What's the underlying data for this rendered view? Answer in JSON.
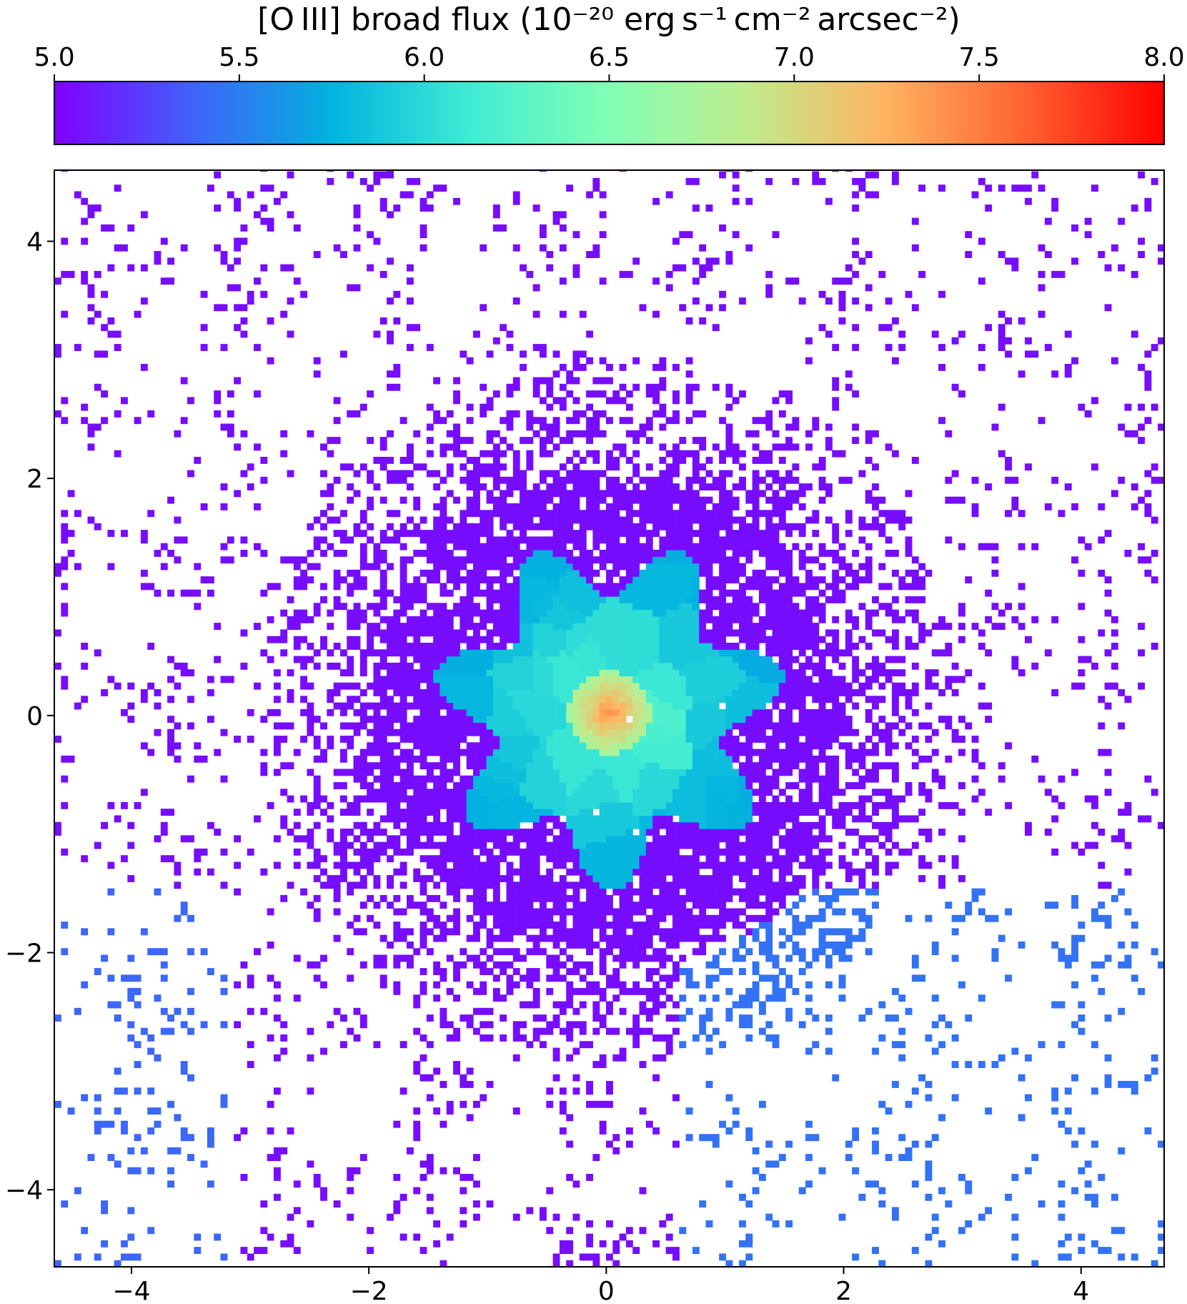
{
  "chart_data": {
    "type": "heatmap",
    "title": "",
    "xlabel": "",
    "ylabel": "",
    "xlim": [
      -4.65,
      4.7
    ],
    "ylim": [
      -4.65,
      4.6
    ],
    "x_ticks": [
      -4,
      -2,
      0,
      2,
      4
    ],
    "y_ticks": [
      -4,
      -2,
      0,
      2,
      4
    ],
    "x_tick_labels": [
      "−4",
      "−2",
      "0",
      "2",
      "4"
    ],
    "y_tick_labels": [
      "−4",
      "−2",
      "0",
      "2",
      "4"
    ],
    "colorbar": {
      "label": "[O III] broad flux (10⁻²⁰ erg s⁻¹ cm⁻² arcsec⁻²)",
      "orientation": "horizontal",
      "position": "top",
      "range": [
        5.0,
        8.0
      ],
      "ticks": [
        5.0,
        5.5,
        6.0,
        6.5,
        7.0,
        7.5,
        8.0
      ],
      "tick_labels": [
        "5.0",
        "5.5",
        "6.0",
        "6.5",
        "7.0",
        "7.5",
        "8.0"
      ],
      "colormap": "rainbow",
      "colormap_stops": [
        "#8000ff",
        "#4062fa",
        "#01b3df",
        "#40ecd4",
        "#81ffb4",
        "#c0eb8d",
        "#ffb360",
        "#ff6230",
        "#ff0000"
      ]
    },
    "map": {
      "description_values": {
        "peak_value": 7.4,
        "peak_location": [
          0.0,
          0.0
        ],
        "inner_voronoi_region_radius": 1.5,
        "inner_region_edge_value": 5.6,
        "diffuse_halo_value": 5.05,
        "lower_right_clump_value": 5.45
      }
    },
    "grid": false
  }
}
